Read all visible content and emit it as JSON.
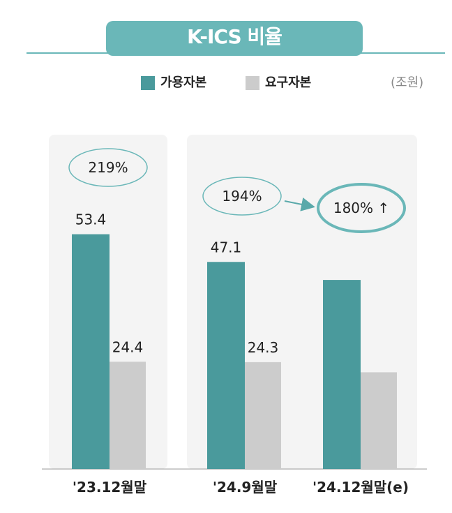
{
  "chart_data": {
    "type": "bar",
    "title": "K-ICS 비율",
    "unit": "(조원)",
    "categories": [
      "'23.12월말",
      "'24.9월말",
      "'24.12월말(e)"
    ],
    "series": [
      {
        "name": "가용자본",
        "color": "#4a9a9c",
        "values": [
          53.4,
          47.1,
          43.0
        ],
        "labels": [
          "53.4",
          "47.1",
          ""
        ]
      },
      {
        "name": "요구자본",
        "color": "#cccccc",
        "values": [
          24.4,
          24.3,
          22.0
        ],
        "labels": [
          "24.4",
          "24.3",
          ""
        ]
      }
    ],
    "ratios": [
      "219%",
      "194%",
      "180% ↑"
    ],
    "legend_position": "top",
    "grid": false
  },
  "colors": {
    "accent": "#6ab7b8",
    "panel": "#f4f4f4"
  }
}
